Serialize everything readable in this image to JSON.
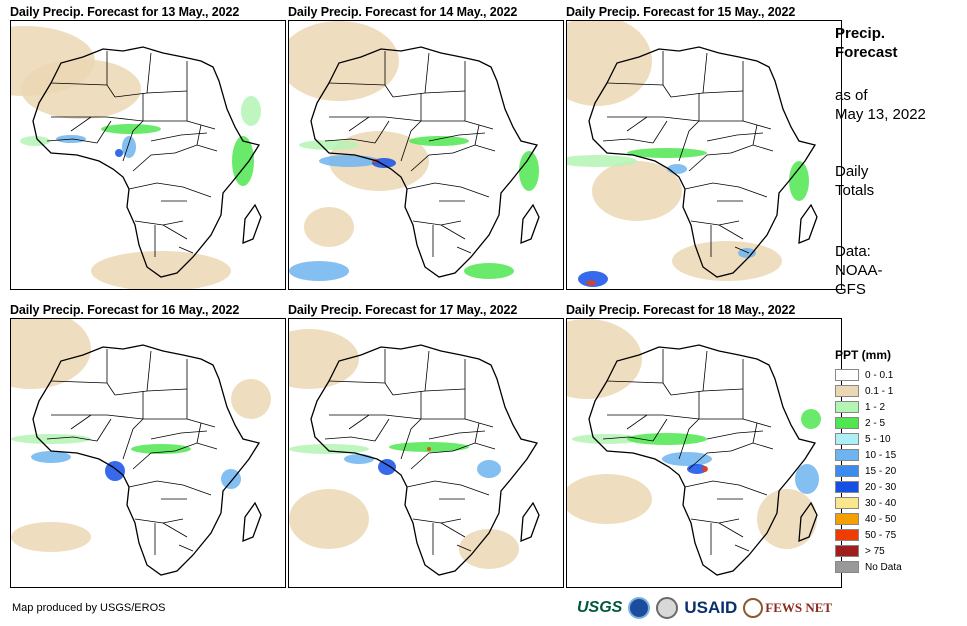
{
  "panels": [
    {
      "title": "Daily Precip. Forecast for 13 May., 2022"
    },
    {
      "title": "Daily Precip. Forecast for 14 May., 2022"
    },
    {
      "title": "Daily Precip. Forecast for 15 May., 2022"
    },
    {
      "title": "Daily Precip. Forecast for 16 May., 2022"
    },
    {
      "title": "Daily Precip. Forecast for 17 May., 2022"
    },
    {
      "title": "Daily Precip. Forecast for 18 May., 2022"
    }
  ],
  "side": {
    "title_line1": "Precip.",
    "title_line2": "Forecast",
    "asof_line1": "as of",
    "asof_line2": "May 13, 2022",
    "totals_line1": "Daily",
    "totals_line2": "Totals",
    "data_line1": "Data:",
    "data_line2": "NOAA-",
    "data_line3": "GFS"
  },
  "legend": {
    "title": "PPT (mm)",
    "items": [
      {
        "label": "0 - 0.1",
        "color": "#ffffff"
      },
      {
        "label": "0.1 - 1",
        "color": "#ecd7b4"
      },
      {
        "label": "1 - 2",
        "color": "#b4f5b4"
      },
      {
        "label": "2 - 5",
        "color": "#50e650"
      },
      {
        "label": "5 - 10",
        "color": "#aeeef5"
      },
      {
        "label": "10 - 15",
        "color": "#6eb4f0"
      },
      {
        "label": "15 - 20",
        "color": "#3c8cf0"
      },
      {
        "label": "20 - 30",
        "color": "#1450e6"
      },
      {
        "label": "30 - 40",
        "color": "#fae68c"
      },
      {
        "label": "40 - 50",
        "color": "#f5a000"
      },
      {
        "label": "50 - 75",
        "color": "#f03c00"
      },
      {
        "label": "> 75",
        "color": "#a01e1e"
      },
      {
        "label": "No Data",
        "color": "#999999"
      }
    ]
  },
  "credit": "Map produced by USGS/EROS",
  "logos": {
    "usgs": "USGS",
    "usaid": "USAID",
    "fewsnet": "FEWS NET"
  },
  "map_colors": {
    "coast": "#000000",
    "dry": "#ecd7b4",
    "light": "#b4f5b4",
    "moderate": "#50e650",
    "wet": "#6eb4f0",
    "heavy": "#1450e6",
    "extreme": "#f03c00"
  }
}
